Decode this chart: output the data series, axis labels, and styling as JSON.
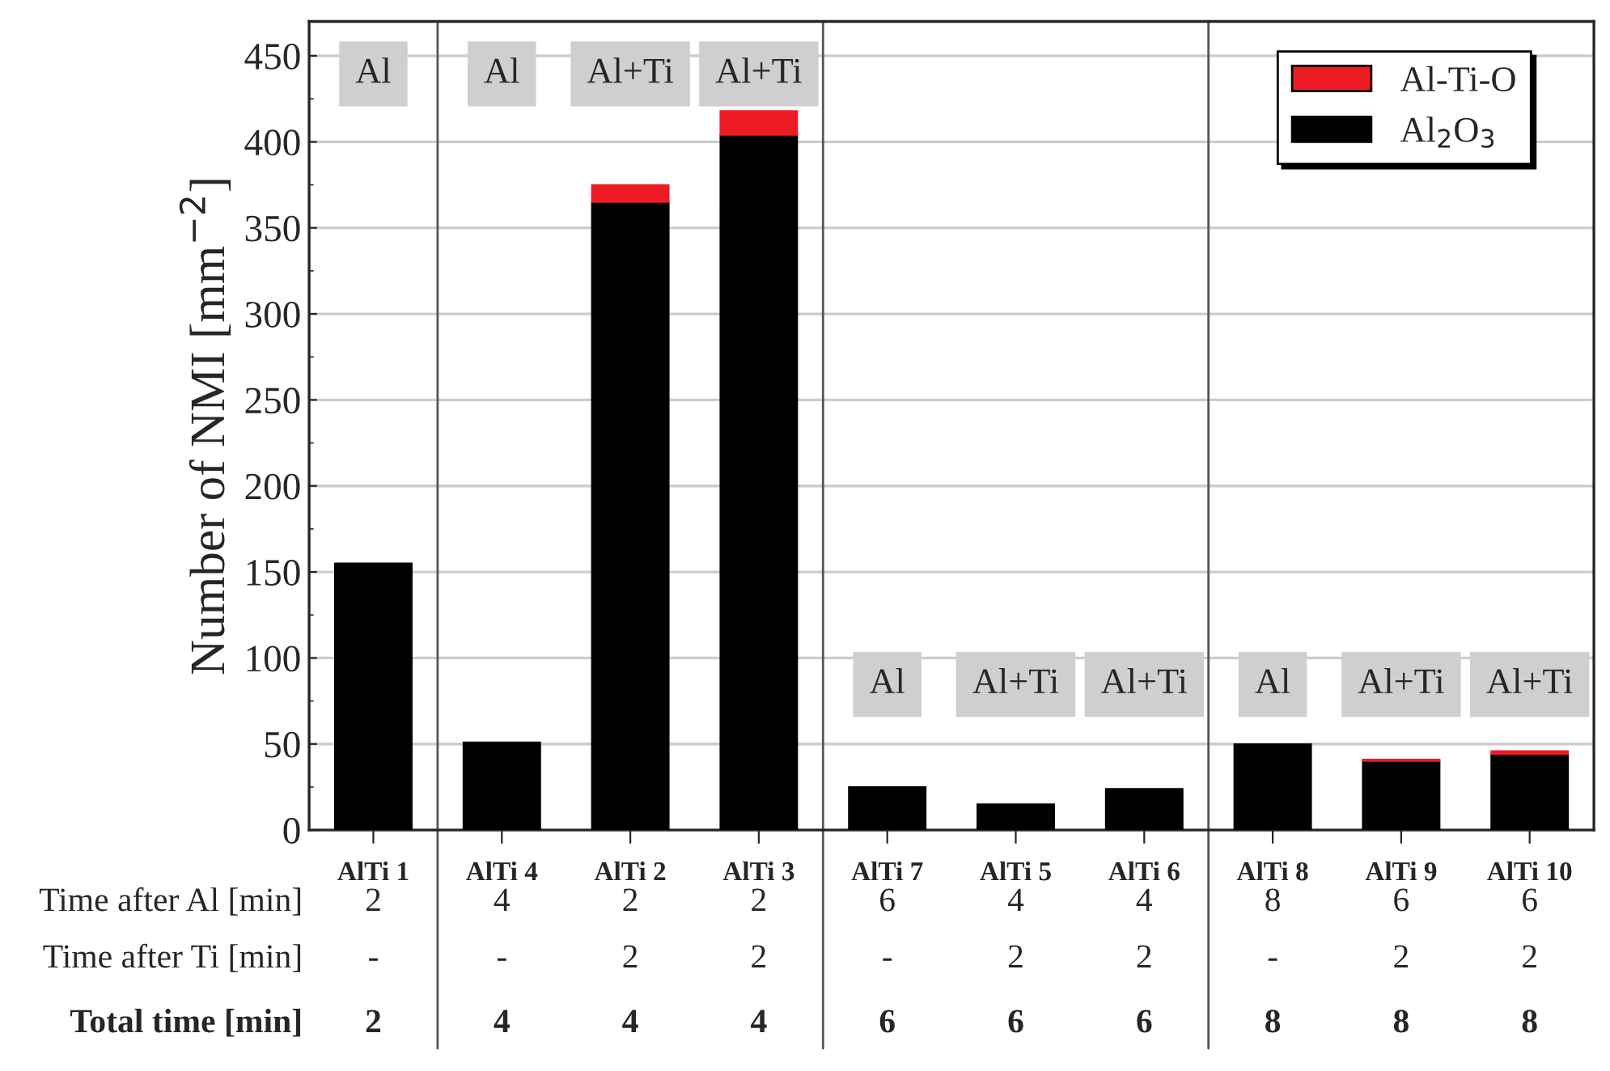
{
  "chart_data": {
    "type": "bar",
    "stacked": true,
    "ylabel": "Number of NMI [mm$^{−2}$]",
    "categories": [
      "AlTi 1",
      "AlTi 4",
      "AlTi 2",
      "AlTi 3",
      "AlTi 7",
      "AlTi 5",
      "AlTi 6",
      "AlTi 8",
      "AlTi 9",
      "AlTi 10"
    ],
    "series": [
      {
        "name": "Al$_{2}$O$_{3}$",
        "color": "#000000",
        "values": [
          155,
          51,
          365,
          404,
          25,
          15,
          24,
          50,
          40,
          44
        ]
      },
      {
        "name": "Al-Ti-O",
        "color": "#ed1c24",
        "values": [
          null,
          null,
          10,
          14,
          null,
          null,
          null,
          null,
          1,
          2
        ]
      }
    ],
    "ylim": [
      0,
      470
    ],
    "yticks": [
      0,
      50,
      100,
      150,
      200,
      250,
      300,
      350,
      400,
      450
    ],
    "grid": "y",
    "legend": "top right",
    "annotations": [
      "Al",
      "Al",
      "Al+Ti",
      "Al+Ti",
      "Al",
      "Al+Ti",
      "Al+Ti",
      "Al",
      "Al+Ti",
      "Al+Ti",
      "Time after Al [min]",
      "2",
      "4",
      "2",
      "2",
      "6",
      "4",
      "4",
      "8",
      "6",
      "6",
      "Time after Ti [min]",
      "-",
      "-",
      "2",
      "2",
      "-",
      "2",
      "2",
      "-",
      "2",
      "2",
      "Total time [min]",
      "2",
      "4",
      "4",
      "4",
      "6",
      "6",
      "6",
      "8",
      "8",
      "8"
    ]
  }
}
